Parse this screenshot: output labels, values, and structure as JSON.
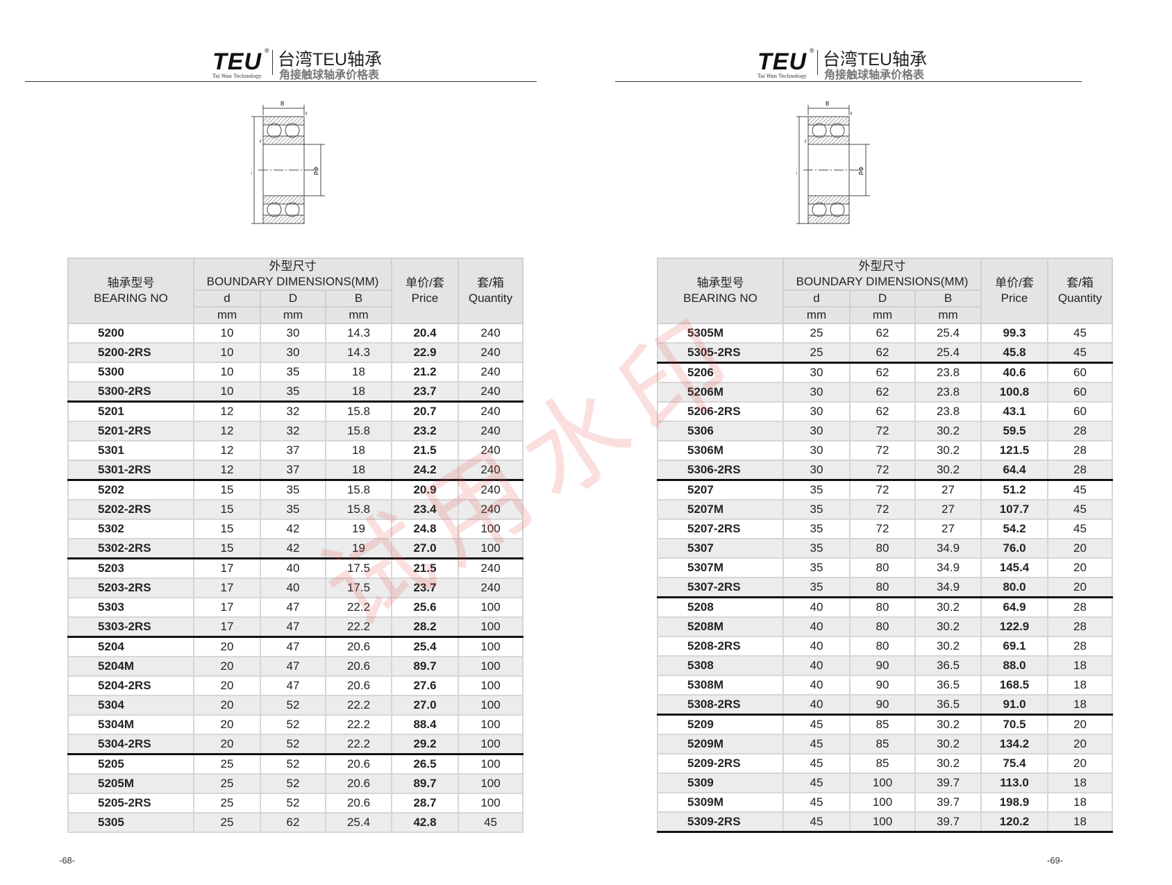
{
  "header": {
    "logo_text": "TEU",
    "logo_reg": "®",
    "logo_sub": "Tai Wan Technology",
    "title": "台湾TEU轴承",
    "subtitle": "角接触球轴承价格表"
  },
  "diagram_labels": {
    "B": "B",
    "r": "r",
    "D": "ΦD",
    "d": "Φd"
  },
  "table_header": {
    "bearing_cn": "轴承型号",
    "bearing_en": "BEARING NO",
    "dims_cn": "外型尺寸",
    "dims_en": "BOUNDARY  DIMENSIONS(MM)",
    "d": "d",
    "D": "D",
    "B": "B",
    "unit": "mm",
    "price_cn": "单价/套",
    "price_en": "Price",
    "qty_cn": "套/箱",
    "qty_en": "Quantity"
  },
  "watermark": "试用水印",
  "pages": [
    {
      "page_number": "-68-",
      "rows": [
        [
          "5200",
          "10",
          "30",
          "14.3",
          "20.4",
          "240"
        ],
        [
          "5200-2RS",
          "10",
          "30",
          "14.3",
          "22.9",
          "240"
        ],
        [
          "5300",
          "10",
          "35",
          "18",
          "21.2",
          "240"
        ],
        [
          "5300-2RS",
          "10",
          "35",
          "18",
          "23.7",
          "240"
        ],
        [
          "5201",
          "12",
          "32",
          "15.8",
          "20.7",
          "240"
        ],
        [
          "5201-2RS",
          "12",
          "32",
          "15.8",
          "23.2",
          "240"
        ],
        [
          "5301",
          "12",
          "37",
          "18",
          "21.5",
          "240"
        ],
        [
          "5301-2RS",
          "12",
          "37",
          "18",
          "24.2",
          "240"
        ],
        [
          "5202",
          "15",
          "35",
          "15.8",
          "20.9",
          "240"
        ],
        [
          "5202-2RS",
          "15",
          "35",
          "15.8",
          "23.4",
          "240"
        ],
        [
          "5302",
          "15",
          "42",
          "19",
          "24.8",
          "100"
        ],
        [
          "5302-2RS",
          "15",
          "42",
          "19",
          "27.0",
          "100"
        ],
        [
          "5203",
          "17",
          "40",
          "17.5",
          "21.5",
          "240"
        ],
        [
          "5203-2RS",
          "17",
          "40",
          "17.5",
          "23.7",
          "240"
        ],
        [
          "5303",
          "17",
          "47",
          "22.2",
          "25.6",
          "100"
        ],
        [
          "5303-2RS",
          "17",
          "47",
          "22.2",
          "28.2",
          "100"
        ],
        [
          "5204",
          "20",
          "47",
          "20.6",
          "25.4",
          "100"
        ],
        [
          "5204M",
          "20",
          "47",
          "20.6",
          "89.7",
          "100"
        ],
        [
          "5204-2RS",
          "20",
          "47",
          "20.6",
          "27.6",
          "100"
        ],
        [
          "5304",
          "20",
          "52",
          "22.2",
          "27.0",
          "100"
        ],
        [
          "5304M",
          "20",
          "52",
          "22.2",
          "88.4",
          "100"
        ],
        [
          "5304-2RS",
          "20",
          "52",
          "22.2",
          "29.2",
          "100"
        ],
        [
          "5205",
          "25",
          "52",
          "20.6",
          "26.5",
          "100"
        ],
        [
          "5205M",
          "25",
          "52",
          "20.6",
          "89.7",
          "100"
        ],
        [
          "5205-2RS",
          "25",
          "52",
          "20.6",
          "28.7",
          "100"
        ],
        [
          "5305",
          "25",
          "62",
          "25.4",
          "42.8",
          "45"
        ]
      ],
      "separators_before": [
        4,
        8,
        12,
        16,
        22
      ],
      "thick_bottom": false
    },
    {
      "page_number": "-69-",
      "rows": [
        [
          "5305M",
          "25",
          "62",
          "25.4",
          "99.3",
          "45"
        ],
        [
          "5305-2RS",
          "25",
          "62",
          "25.4",
          "45.8",
          "45"
        ],
        [
          "5206",
          "30",
          "62",
          "23.8",
          "40.6",
          "60"
        ],
        [
          "5206M",
          "30",
          "62",
          "23.8",
          "100.8",
          "60"
        ],
        [
          "5206-2RS",
          "30",
          "62",
          "23.8",
          "43.1",
          "60"
        ],
        [
          "5306",
          "30",
          "72",
          "30.2",
          "59.5",
          "28"
        ],
        [
          "5306M",
          "30",
          "72",
          "30.2",
          "121.5",
          "28"
        ],
        [
          "5306-2RS",
          "30",
          "72",
          "30.2",
          "64.4",
          "28"
        ],
        [
          "5207",
          "35",
          "72",
          "27",
          "51.2",
          "45"
        ],
        [
          "5207M",
          "35",
          "72",
          "27",
          "107.7",
          "45"
        ],
        [
          "5207-2RS",
          "35",
          "72",
          "27",
          "54.2",
          "45"
        ],
        [
          "5307",
          "35",
          "80",
          "34.9",
          "76.0",
          "20"
        ],
        [
          "5307M",
          "35",
          "80",
          "34.9",
          "145.4",
          "20"
        ],
        [
          "5307-2RS",
          "35",
          "80",
          "34.9",
          "80.0",
          "20"
        ],
        [
          "5208",
          "40",
          "80",
          "30.2",
          "64.9",
          "28"
        ],
        [
          "5208M",
          "40",
          "80",
          "30.2",
          "122.9",
          "28"
        ],
        [
          "5208-2RS",
          "40",
          "80",
          "30.2",
          "69.1",
          "28"
        ],
        [
          "5308",
          "40",
          "90",
          "36.5",
          "88.0",
          "18"
        ],
        [
          "5308M",
          "40",
          "90",
          "36.5",
          "168.5",
          "18"
        ],
        [
          "5308-2RS",
          "40",
          "90",
          "36.5",
          "91.0",
          "18"
        ],
        [
          "5209",
          "45",
          "85",
          "30.2",
          "70.5",
          "20"
        ],
        [
          "5209M",
          "45",
          "85",
          "30.2",
          "134.2",
          "20"
        ],
        [
          "5209-2RS",
          "45",
          "85",
          "30.2",
          "75.4",
          "20"
        ],
        [
          "5309",
          "45",
          "100",
          "39.7",
          "113.0",
          "18"
        ],
        [
          "5309M",
          "45",
          "100",
          "39.7",
          "198.9",
          "18"
        ],
        [
          "5309-2RS",
          "45",
          "100",
          "39.7",
          "120.2",
          "18"
        ]
      ],
      "separators_before": [
        2,
        8,
        14,
        20
      ],
      "thick_bottom": true
    }
  ]
}
